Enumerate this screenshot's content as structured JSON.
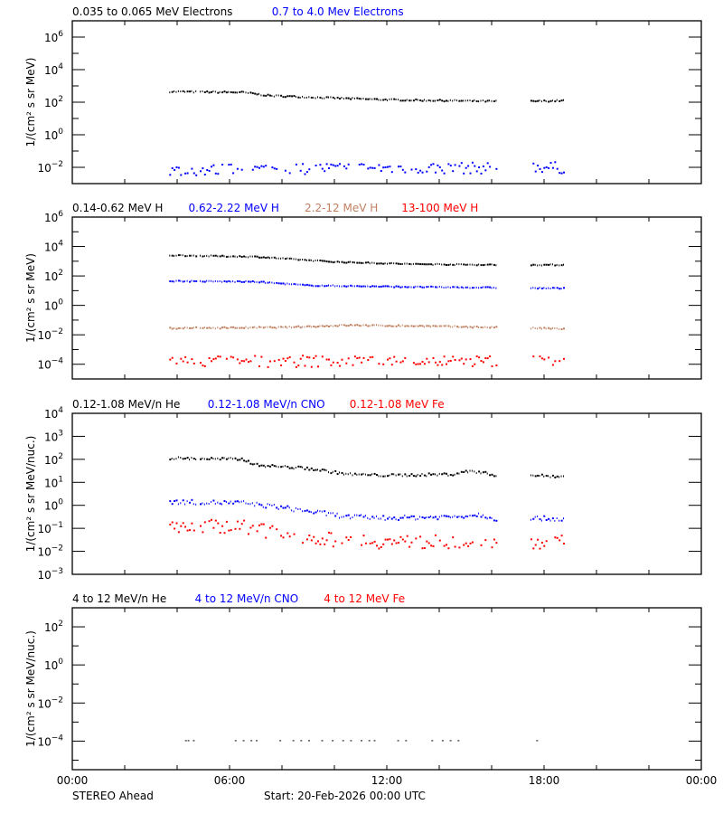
{
  "chart_data": [
    {
      "type": "scatter",
      "panel": 1,
      "title": "0.035 to 0.065 MeV Electrons / 0.7 to 4.0 Mev Electrons",
      "ylabel": "1/(cm2 s sr MeV)",
      "yscale": "log",
      "ylim_exp": [
        -3,
        7
      ],
      "ytick_exps": [
        -2,
        0,
        2,
        4,
        6
      ],
      "ytick_labels": [
        "10^-2",
        "10^0",
        "10^2",
        "10^4",
        "10^6"
      ],
      "series": [
        {
          "name": "0.035 to 0.065 MeV Electrons",
          "color": "#000000",
          "trend": [
            [
              3.7,
              2.65
            ],
            [
              6.5,
              2.6
            ],
            [
              7.5,
              2.4
            ],
            [
              10,
              2.25
            ],
            [
              12,
              2.15
            ],
            [
              16.2,
              2.05
            ],
            [
              17.4,
              2.05
            ],
            [
              18.8,
              2.1
            ]
          ],
          "jitter": 0.05
        },
        {
          "name": "0.7 to 4.0 Mev Electrons",
          "color": "#0000ff",
          "trend": [
            [
              3.7,
              -2.2
            ],
            [
              10,
              -2.05
            ],
            [
              16.2,
              -2.05
            ],
            [
              17.4,
              -1.95
            ],
            [
              18.8,
              -2.05
            ]
          ],
          "jitter": 0.35
        }
      ]
    },
    {
      "type": "scatter",
      "panel": 2,
      "title": "0.14-0.62 MeV H / 0.62-2.22 MeV H / 2.2-12 MeV H / 13-100 MeV H",
      "ylabel": "1/(cm2 s sr MeV)",
      "yscale": "log",
      "ylim_exp": [
        -5,
        6
      ],
      "ytick_exps": [
        -4,
        -2,
        0,
        2,
        4,
        6
      ],
      "ytick_labels": [
        "10^-4",
        "10^-2",
        "10^0",
        "10^2",
        "10^4",
        "10^6"
      ],
      "series": [
        {
          "name": "0.14-0.62 MeV H",
          "color": "#000000",
          "trend": [
            [
              3.7,
              3.4
            ],
            [
              7,
              3.3
            ],
            [
              10,
              2.95
            ],
            [
              13,
              2.8
            ],
            [
              16.2,
              2.75
            ],
            [
              18.8,
              2.75
            ]
          ],
          "jitter": 0.04
        },
        {
          "name": "0.62-2.22 MeV H",
          "color": "#0000ff",
          "trend": [
            [
              3.7,
              1.65
            ],
            [
              7,
              1.6
            ],
            [
              9,
              1.35
            ],
            [
              13,
              1.25
            ],
            [
              16.2,
              1.2
            ],
            [
              18.8,
              1.15
            ]
          ],
          "jitter": 0.04
        },
        {
          "name": "2.2-12 MeV H",
          "color": "#c08060",
          "trend": [
            [
              3.7,
              -1.55
            ],
            [
              8,
              -1.5
            ],
            [
              10.5,
              -1.35
            ],
            [
              13,
              -1.4
            ],
            [
              16.2,
              -1.5
            ],
            [
              18.8,
              -1.6
            ]
          ],
          "jitter": 0.05
        },
        {
          "name": "13-100 MeV H",
          "color": "#ff0000",
          "trend": [
            [
              3.7,
              -3.8
            ],
            [
              18.8,
              -3.8
            ]
          ],
          "jitter": 0.4
        }
      ]
    },
    {
      "type": "scatter",
      "panel": 3,
      "title": "0.12-1.08 MeV/n He / 0.12-1.08 MeV/n CNO / 0.12-1.08 MeV Fe",
      "ylabel": "1/(cm2 s sr MeV/nuc.)",
      "yscale": "log",
      "ylim_exp": [
        -3,
        4
      ],
      "ytick_exps": [
        -3,
        -2,
        -1,
        0,
        1,
        2,
        3,
        4
      ],
      "ytick_labels": [
        "10^-3",
        "10^-2",
        "10^-1",
        "10^0",
        "10^1",
        "10^2",
        "10^3",
        "10^4"
      ],
      "series": [
        {
          "name": "0.12-1.08 MeV/n He",
          "color": "#000000",
          "trend": [
            [
              3.7,
              2.05
            ],
            [
              6.5,
              2.0
            ],
            [
              7,
              1.75
            ],
            [
              9,
              1.6
            ],
            [
              10.5,
              1.35
            ],
            [
              12,
              1.3
            ],
            [
              14.5,
              1.35
            ],
            [
              15.2,
              1.5
            ],
            [
              16.2,
              1.3
            ],
            [
              17.4,
              1.3
            ],
            [
              18.8,
              1.25
            ]
          ],
          "jitter": 0.06
        },
        {
          "name": "0.12-1.08 MeV/n CNO",
          "color": "#0000ff",
          "trend": [
            [
              3.7,
              0.15
            ],
            [
              6.5,
              0.1
            ],
            [
              8,
              -0.1
            ],
            [
              10.5,
              -0.5
            ],
            [
              12,
              -0.55
            ],
            [
              14.5,
              -0.5
            ],
            [
              15.5,
              -0.4
            ],
            [
              16.2,
              -0.6
            ],
            [
              17.4,
              -0.55
            ],
            [
              18.8,
              -0.6
            ]
          ],
          "jitter": 0.1
        },
        {
          "name": "0.12-1.08 MeV Fe",
          "color": "#ff0000",
          "trend": [
            [
              3.7,
              -0.9
            ],
            [
              6.5,
              -0.9
            ],
            [
              8,
              -1.3
            ],
            [
              10,
              -1.5
            ],
            [
              12,
              -1.6
            ],
            [
              16.2,
              -1.6
            ],
            [
              18.8,
              -1.6
            ]
          ],
          "jitter": 0.3
        }
      ]
    },
    {
      "type": "scatter",
      "panel": 4,
      "title": "4 to 12 MeV/n He / 4 to 12 MeV/n CNO / 4 to 12 MeV Fe",
      "ylabel": "1/(cm2 s sr MeV/nuc.)",
      "yscale": "log",
      "ylim_exp": [
        -5.5,
        3
      ],
      "ytick_exps": [
        -4,
        -2,
        0,
        2
      ],
      "ytick_labels": [
        "10^-4",
        "10^-2",
        "10^0",
        "10^2"
      ],
      "series": [
        {
          "name": "4 to 12 MeV/n He",
          "color": "#000000",
          "points_x_hours": [
            4.3,
            4.4,
            4.6,
            6.2,
            6.5,
            6.8,
            7.0,
            7.9,
            8.4,
            8.7,
            9.0,
            9.5,
            9.9,
            10.3,
            10.6,
            11.0,
            11.3,
            11.5,
            12.4,
            12.7,
            13.7,
            14.1,
            14.4,
            14.7,
            17.7
          ],
          "value_exp": -4
        },
        {
          "name": "4 to 12 MeV/n CNO",
          "color": "#0000ff",
          "points_x_hours": []
        },
        {
          "name": "4 to 12 MeV Fe",
          "color": "#ff0000",
          "points_x_hours": []
        }
      ]
    }
  ],
  "xaxis": {
    "range_hours": [
      0,
      24
    ],
    "tick_labels": [
      "00:00",
      "06:00",
      "12:00",
      "18:00",
      "00:00"
    ],
    "tick_hours": [
      0,
      6,
      12,
      18,
      24
    ],
    "minor_step_hours": 2
  },
  "data_window": {
    "start_hour": 3.7,
    "gap": [
      16.2,
      17.4
    ],
    "end_hour": 18.8
  },
  "footer": {
    "spacecraft": "STEREO Ahead",
    "start": "Start: 20-Feb-2026 00:00 UTC"
  },
  "panels": [
    {
      "legend": [
        {
          "text": "0.035 to 0.065 MeV Electrons",
          "color": "#000000"
        },
        {
          "text": "0.7 to 4.0 Mev Electrons",
          "color": "#0000ff"
        }
      ],
      "ylabel": "1/(cm² s sr MeV)"
    },
    {
      "legend": [
        {
          "text": "0.14-0.62 MeV H",
          "color": "#000000"
        },
        {
          "text": "0.62-2.22 MeV H",
          "color": "#0000ff"
        },
        {
          "text": "2.2-12 MeV H",
          "color": "#c08060"
        },
        {
          "text": "13-100 MeV H",
          "color": "#ff0000"
        }
      ],
      "ylabel": "1/(cm² s sr MeV)"
    },
    {
      "legend": [
        {
          "text": "0.12-1.08 MeV/n He",
          "color": "#000000"
        },
        {
          "text": "0.12-1.08 MeV/n CNO",
          "color": "#0000ff"
        },
        {
          "text": "0.12-1.08 MeV Fe",
          "color": "#ff0000"
        }
      ],
      "ylabel": "1/(cm² s sr MeV/nuc.)"
    },
    {
      "legend": [
        {
          "text": "4 to 12 MeV/n He",
          "color": "#000000"
        },
        {
          "text": "4 to 12 MeV/n CNO",
          "color": "#0000ff"
        },
        {
          "text": "4 to 12 MeV Fe",
          "color": "#ff0000"
        }
      ],
      "ylabel": "1/(cm² s sr MeV/nuc.)"
    }
  ]
}
